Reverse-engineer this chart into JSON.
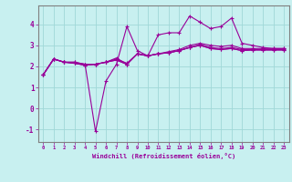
{
  "xlabel": "Windchill (Refroidissement éolien,°C)",
  "bg_color": "#c8f0f0",
  "line_color": "#990099",
  "grid_color": "#a0d8d8",
  "xlim": [
    -0.5,
    23.5
  ],
  "ylim": [
    -1.6,
    4.9
  ],
  "xticks": [
    0,
    1,
    2,
    3,
    4,
    5,
    6,
    7,
    8,
    9,
    10,
    11,
    12,
    13,
    14,
    15,
    16,
    17,
    18,
    19,
    20,
    21,
    22,
    23
  ],
  "yticks": [
    -1,
    0,
    1,
    2,
    3,
    4
  ],
  "series": [
    [
      1.6,
      2.35,
      2.2,
      2.2,
      2.1,
      -1.1,
      1.3,
      2.1,
      3.9,
      2.75,
      2.5,
      3.5,
      3.6,
      3.6,
      4.4,
      4.1,
      3.8,
      3.9,
      4.3,
      3.1,
      3.0,
      2.9,
      2.85,
      2.85
    ],
    [
      1.6,
      2.35,
      2.2,
      2.2,
      2.1,
      2.1,
      2.2,
      2.4,
      2.1,
      2.6,
      2.5,
      2.6,
      2.7,
      2.8,
      3.0,
      3.1,
      3.0,
      2.95,
      3.0,
      2.85,
      2.85,
      2.85,
      2.85,
      2.85
    ],
    [
      1.6,
      2.35,
      2.2,
      2.15,
      2.1,
      2.1,
      2.2,
      2.35,
      2.15,
      2.6,
      2.5,
      2.6,
      2.65,
      2.75,
      2.9,
      3.05,
      2.9,
      2.85,
      2.9,
      2.8,
      2.8,
      2.8,
      2.8,
      2.8
    ],
    [
      1.6,
      2.35,
      2.2,
      2.15,
      2.05,
      2.1,
      2.2,
      2.3,
      2.1,
      2.6,
      2.5,
      2.6,
      2.65,
      2.75,
      2.9,
      3.0,
      2.85,
      2.8,
      2.85,
      2.75,
      2.78,
      2.78,
      2.78,
      2.78
    ],
    [
      1.6,
      2.35,
      2.2,
      2.15,
      2.05,
      2.1,
      2.2,
      2.3,
      2.1,
      2.6,
      2.5,
      2.6,
      2.65,
      2.75,
      2.9,
      3.0,
      2.85,
      2.8,
      2.85,
      2.75,
      2.78,
      2.78,
      2.78,
      2.78
    ]
  ]
}
